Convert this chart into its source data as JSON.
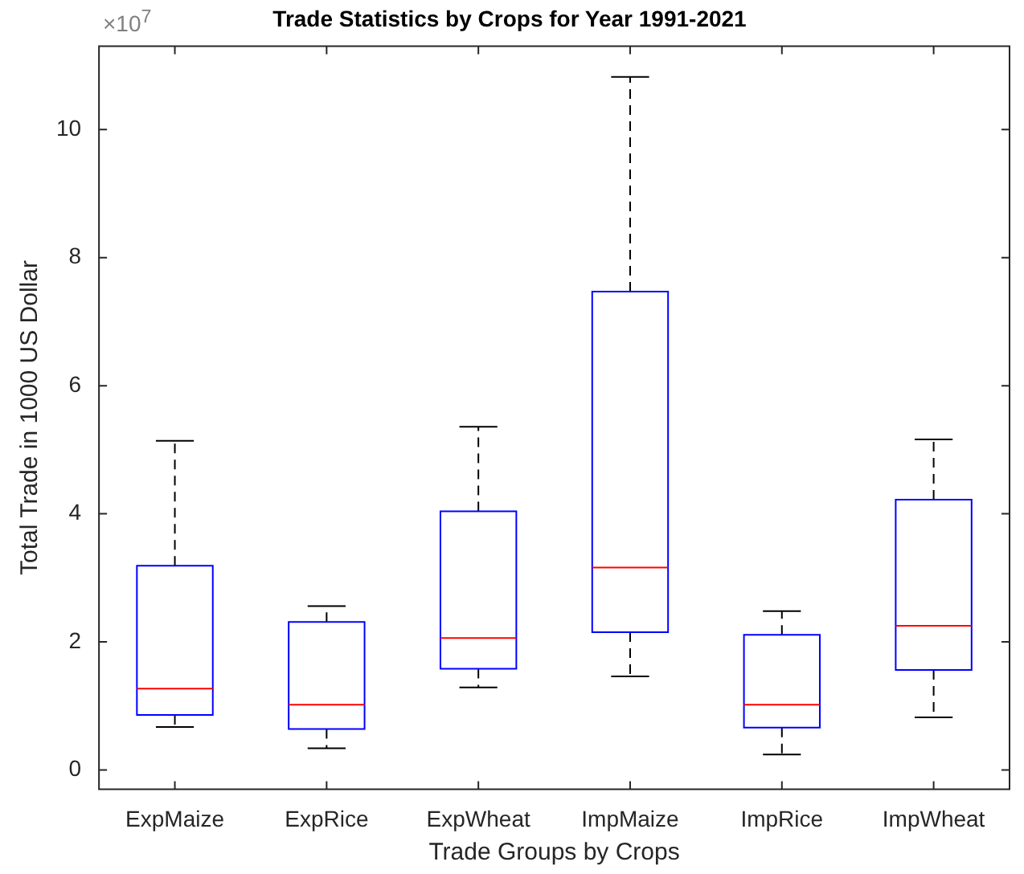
{
  "chart_data": {
    "type": "box",
    "title": "Trade Statistics by Crops for Year 1991-2021",
    "xlabel": "Trade Groups by Crops",
    "ylabel": "Total Trade in 1000 US Dollar",
    "annotations": [
      "×10$^{7}$"
    ],
    "categories": [
      "ExpMaize",
      "ExpRice",
      "ExpWheat",
      "ImpMaize",
      "ImpRice",
      "ImpWheat"
    ],
    "boxes": [
      {
        "low": 0.67,
        "q1": 0.86,
        "median": 1.27,
        "q3": 3.19,
        "high": 5.14
      },
      {
        "low": 0.34,
        "q1": 0.64,
        "median": 1.02,
        "q3": 2.31,
        "high": 2.56
      },
      {
        "low": 1.29,
        "q1": 1.58,
        "median": 2.06,
        "q3": 4.04,
        "high": 5.36
      },
      {
        "low": 1.46,
        "q1": 2.15,
        "median": 3.16,
        "q3": 7.47,
        "high": 10.82
      },
      {
        "low": 0.24,
        "q1": 0.66,
        "median": 1.02,
        "q3": 2.11,
        "high": 2.48
      },
      {
        "low": 0.82,
        "q1": 1.56,
        "median": 2.25,
        "q3": 4.22,
        "high": 5.16
      }
    ],
    "ylim": [
      -0.3,
      11.3
    ],
    "yticks": [
      0,
      2,
      4,
      6,
      8,
      10
    ]
  }
}
